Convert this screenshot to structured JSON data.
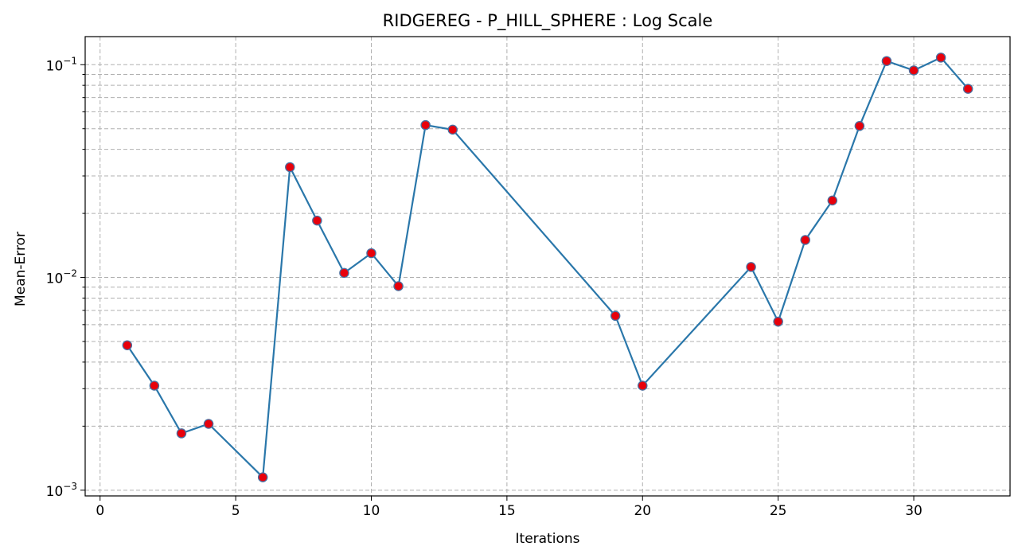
{
  "chart_data": {
    "type": "line",
    "title": "RIDGEREG - P_HILL_SPHERE : Log Scale",
    "xlabel": "Iterations",
    "ylabel": "Mean-Error",
    "yscale": "log",
    "xlim": [
      -0.55,
      33.55
    ],
    "ylim": [
      0.00094,
      0.1355
    ],
    "xticks": [
      0,
      5,
      10,
      15,
      20,
      25,
      30
    ],
    "yticks": [
      {
        "value": 0.001,
        "base": "10",
        "exp": "−3"
      },
      {
        "value": 0.01,
        "base": "10",
        "exp": "−2"
      },
      {
        "value": 0.1,
        "base": "10",
        "exp": "−1"
      }
    ],
    "grid": true,
    "line_color": "#2a77aa",
    "marker_fill": "#e8000b",
    "marker_edge": "#4a6fa0",
    "series": [
      {
        "x": [
          1,
          2,
          3,
          4,
          6,
          7,
          8,
          9,
          10,
          11,
          12,
          13,
          19,
          20,
          24,
          25,
          26,
          27,
          28,
          29,
          30,
          31,
          32
        ],
        "y": [
          0.0048,
          0.0031,
          0.00185,
          0.00205,
          0.00115,
          0.033,
          0.0185,
          0.0105,
          0.013,
          0.0091,
          0.052,
          0.0495,
          0.0066,
          0.0031,
          0.0112,
          0.0062,
          0.015,
          0.023,
          0.0515,
          0.104,
          0.094,
          0.108,
          0.077
        ]
      }
    ]
  }
}
